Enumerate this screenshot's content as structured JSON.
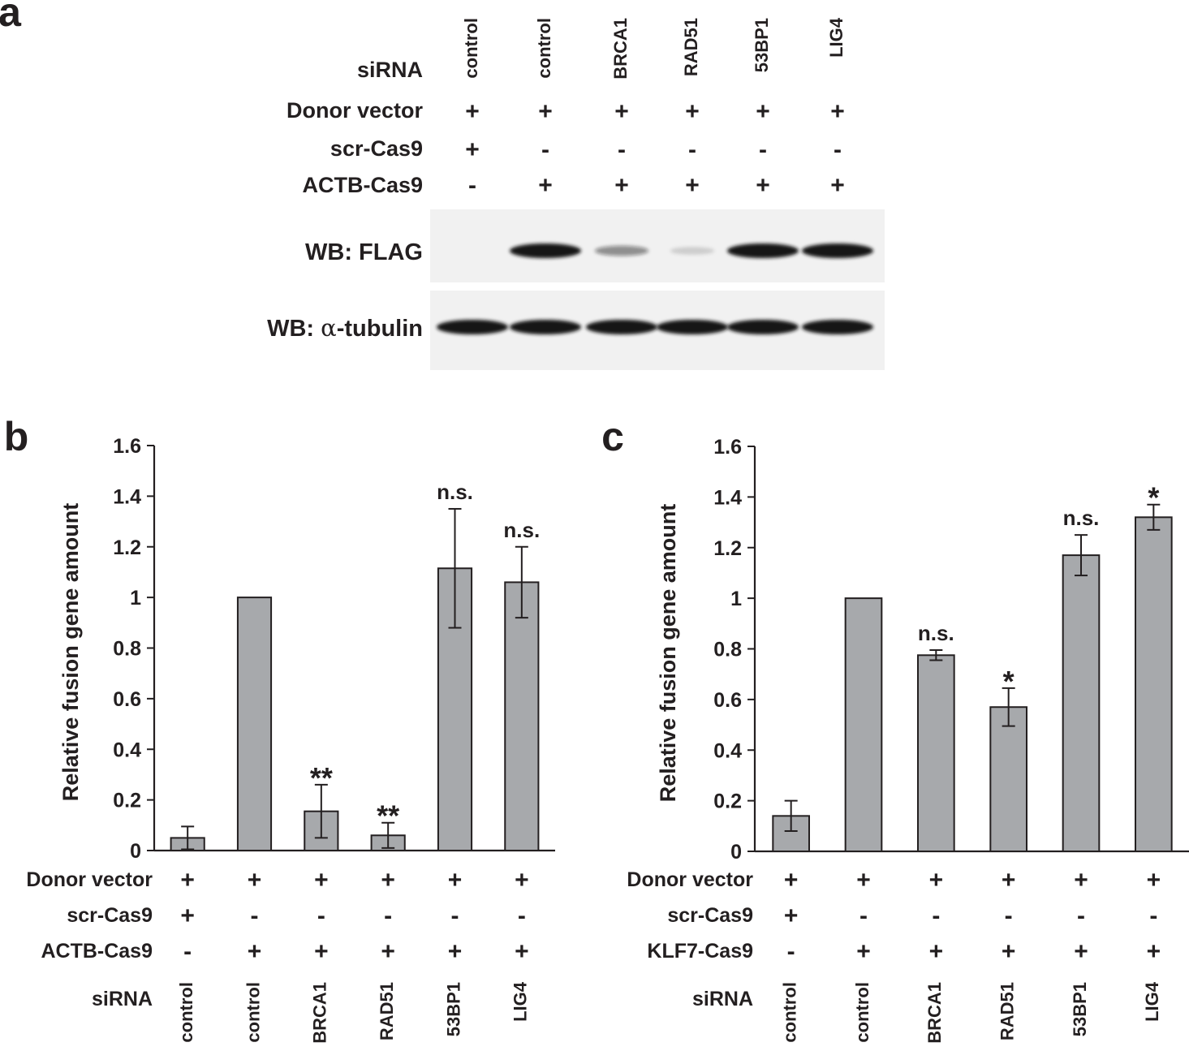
{
  "colors": {
    "bar": "#a7a9ac",
    "ink": "#231f20",
    "blot_bg": "#f1f1f1",
    "band": "#141414"
  },
  "panel_a": {
    "letter": "a",
    "row_labels": {
      "sirna": "siRNA",
      "donor": "Donor vector",
      "scr": "scr-Cas9",
      "actb": "ACTB-Cas9"
    },
    "lanes": [
      {
        "sirna": "control",
        "donor": "+",
        "scr": "+",
        "actb": "-"
      },
      {
        "sirna": "control",
        "donor": "+",
        "scr": "-",
        "actb": "+"
      },
      {
        "sirna": "BRCA1",
        "donor": "+",
        "scr": "-",
        "actb": "+"
      },
      {
        "sirna": "RAD51",
        "donor": "+",
        "scr": "-",
        "actb": "+"
      },
      {
        "sirna": "53BP1",
        "donor": "+",
        "scr": "-",
        "actb": "+"
      },
      {
        "sirna": "LIG4",
        "donor": "+",
        "scr": "-",
        "actb": "+"
      }
    ],
    "blots": [
      {
        "label": "WB: FLAG",
        "intensity": [
          0,
          1.0,
          0.45,
          0.15,
          1.0,
          1.0
        ]
      },
      {
        "label_prefix": "WB: ",
        "label_greek": "α",
        "label_suffix": "-tubulin",
        "intensity": [
          1.0,
          1.0,
          1.0,
          1.0,
          1.0,
          1.0
        ]
      }
    ]
  },
  "chart_data": [
    {
      "type": "bar",
      "letter": "b",
      "ylabel": "Relative fusion gene amount",
      "ylim": [
        0,
        1.6
      ],
      "yticks": [
        "0",
        "0.2",
        "0.4",
        "0.6",
        "0.8",
        "1",
        "1.2",
        "1.4",
        "1.6"
      ],
      "categories": [
        "control",
        "control",
        "BRCA1",
        "RAD51",
        "53BP1",
        "LIG4"
      ],
      "values": [
        0.05,
        1.0,
        0.155,
        0.06,
        1.115,
        1.06
      ],
      "errors": [
        0.045,
        0,
        0.105,
        0.05,
        0.235,
        0.14
      ],
      "annotations": [
        "",
        "",
        "**",
        "**",
        "n.s.",
        "n.s."
      ],
      "conditions": [
        {
          "label": "Donor vector",
          "values": [
            "+",
            "+",
            "+",
            "+",
            "+",
            "+"
          ]
        },
        {
          "label": "scr-Cas9",
          "values": [
            "+",
            "-",
            "-",
            "-",
            "-",
            "-"
          ]
        },
        {
          "label": "ACTB-Cas9",
          "values": [
            "-",
            "+",
            "+",
            "+",
            "+",
            "+"
          ]
        }
      ],
      "sirna_label": "siRNA"
    },
    {
      "type": "bar",
      "letter": "c",
      "ylabel": "Relative fusion gene amount",
      "ylim": [
        0,
        1.6
      ],
      "yticks": [
        "0",
        "0.2",
        "0.4",
        "0.6",
        "0.8",
        "1",
        "1.2",
        "1.4",
        "1.6"
      ],
      "categories": [
        "control",
        "control",
        "BRCA1",
        "RAD51",
        "53BP1",
        "LIG4"
      ],
      "values": [
        0.14,
        1.0,
        0.775,
        0.57,
        1.17,
        1.32
      ],
      "errors": [
        0.06,
        0,
        0.02,
        0.075,
        0.08,
        0.05
      ],
      "annotations": [
        "",
        "",
        "n.s.",
        "*",
        "n.s.",
        "*"
      ],
      "conditions": [
        {
          "label": "Donor vector",
          "values": [
            "+",
            "+",
            "+",
            "+",
            "+",
            "+"
          ]
        },
        {
          "label": "scr-Cas9",
          "values": [
            "+",
            "-",
            "-",
            "-",
            "-",
            "-"
          ]
        },
        {
          "label": "KLF7-Cas9",
          "values": [
            "-",
            "+",
            "+",
            "+",
            "+",
            "+"
          ]
        }
      ],
      "sirna_label": "siRNA"
    }
  ]
}
